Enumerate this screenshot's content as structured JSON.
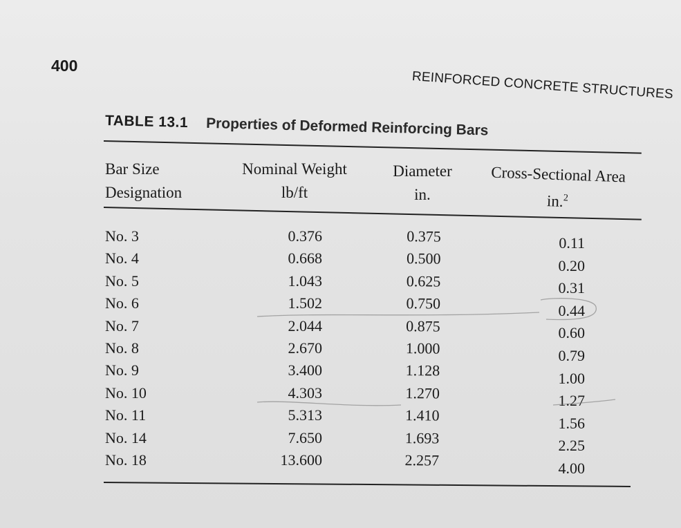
{
  "page_number": "400",
  "running_head": "REINFORCED CONCRETE STRUCTURES",
  "table": {
    "label": "TABLE 13.1",
    "title": "Properties of Deformed Reinforcing Bars",
    "headers": {
      "bar_size": [
        "Bar Size",
        "Designation"
      ],
      "nominal_weight": [
        "Nominal Weight",
        "lb/ft"
      ],
      "diameter": [
        "Diameter",
        "in."
      ],
      "area": [
        "Cross-Sectional Area",
        "in.",
        "2"
      ]
    },
    "columns": {
      "bar_size": [
        "No. 3",
        "No. 4",
        "No. 5",
        "No. 6",
        "No. 7",
        "No. 8",
        "No. 9",
        "No. 10",
        "No. 11",
        "No. 14",
        "No. 18"
      ],
      "nominal_weight": [
        "0.376",
        "0.668",
        "1.043",
        "1.502",
        "2.044",
        "2.670",
        "3.400",
        "4.303",
        "5.313",
        "7.650",
        "13.600"
      ],
      "diameter": [
        "0.375",
        "0.500",
        "0.625",
        "0.750",
        "0.875",
        "1.000",
        "1.128",
        "1.270",
        "1.410",
        "1.693",
        "2.257"
      ],
      "area": [
        "0.11",
        "0.20",
        "0.31",
        "0.44",
        "0.60",
        "0.79",
        "1.00",
        "1.27",
        "1.56",
        "2.25",
        "4.00"
      ]
    }
  }
}
